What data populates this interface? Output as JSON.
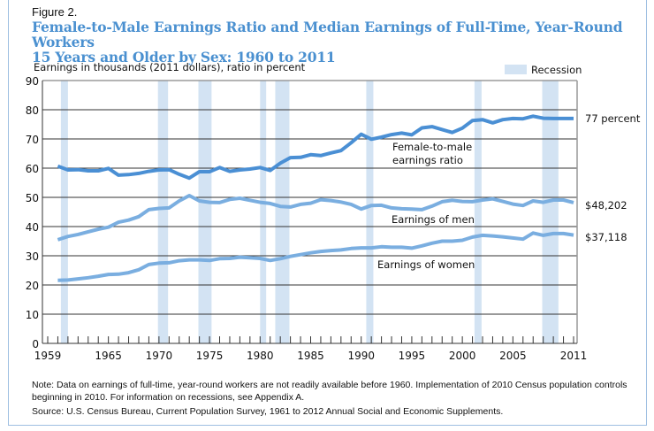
{
  "figure_label": "Figure 2.",
  "title_line1": "Female-to-Male Earnings Ratio and Median Earnings of Full-Time, Year-Round Workers",
  "title_line2": "15 Years and Older by Sex: 1960 to 2011",
  "note": "Note: Data on earnings of full-time, year-round workers are not readily available before 1960. Implementation of 2010 Census population controls beginning in 2010. For information on recessions, see Appendix A.",
  "source": "Source: U.S. Census Bureau, Current Population Survey, 1961 to 2012 Annual Social and Economic Supplements.",
  "colors": {
    "title": "#4a90d0",
    "ratio_line": "#4a8fd4",
    "earnings_line": "#7aaee0",
    "recession": "#d3e3f3",
    "grid": "#333333"
  },
  "chart_data": {
    "type": "line",
    "title": "Female-to-Male Earnings Ratio and Median Earnings of Full-Time, Year-Round Workers 15 Years and Older by Sex: 1960 to 2011",
    "ylabel": "Earnings in thousands (2011 dollars), ratio in percent",
    "xlabel": "",
    "ylim": [
      0,
      90
    ],
    "xlim": [
      1959,
      2011
    ],
    "yticks": [
      0,
      10,
      20,
      30,
      40,
      50,
      60,
      70,
      80,
      90
    ],
    "xtick_labels": [
      "1959",
      "1965",
      "1970",
      "1975",
      "1980",
      "1985",
      "1990",
      "1995",
      "2000",
      "2005",
      "2011"
    ],
    "grid": true,
    "legend": {
      "label": "Recession",
      "placement": "top-right"
    },
    "recessions": [
      [
        1960.3,
        1961.0
      ],
      [
        1969.9,
        1970.9
      ],
      [
        1973.9,
        1975.2
      ],
      [
        1980.0,
        1980.6
      ],
      [
        1981.5,
        1982.9
      ],
      [
        1990.5,
        1991.2
      ],
      [
        2001.2,
        2001.9
      ],
      [
        2007.9,
        2009.5
      ]
    ],
    "x": [
      1960,
      1961,
      1962,
      1963,
      1964,
      1965,
      1966,
      1967,
      1968,
      1969,
      1970,
      1971,
      1972,
      1973,
      1974,
      1975,
      1976,
      1977,
      1978,
      1979,
      1980,
      1981,
      1982,
      1983,
      1984,
      1985,
      1986,
      1987,
      1988,
      1989,
      1990,
      1991,
      1992,
      1993,
      1994,
      1995,
      1996,
      1997,
      1998,
      1999,
      2000,
      2001,
      2002,
      2003,
      2004,
      2005,
      2006,
      2007,
      2008,
      2009,
      2010,
      2011
    ],
    "series": [
      {
        "name": "Female-to-male earnings ratio",
        "end_label": "77 percent",
        "values": [
          60.7,
          59.4,
          59.5,
          59.1,
          59.1,
          59.9,
          57.6,
          57.8,
          58.2,
          58.9,
          59.4,
          59.5,
          57.9,
          56.6,
          58.8,
          58.8,
          60.2,
          58.9,
          59.4,
          59.7,
          60.2,
          59.2,
          61.7,
          63.6,
          63.7,
          64.6,
          64.3,
          65.2,
          66.0,
          68.7,
          71.6,
          69.9,
          70.6,
          71.5,
          72.0,
          71.4,
          73.8,
          74.2,
          73.2,
          72.2,
          73.7,
          76.3,
          76.6,
          75.5,
          76.6,
          77.0,
          76.9,
          77.8,
          77.1,
          77.0,
          77.0,
          77.0
        ]
      },
      {
        "name": "Earnings of men",
        "end_label": "$48,202",
        "values": [
          35.5,
          36.6,
          37.3,
          38.2,
          39.1,
          39.8,
          41.5,
          42.2,
          43.4,
          45.8,
          46.2,
          46.4,
          48.8,
          50.6,
          48.8,
          48.3,
          48.2,
          49.3,
          49.7,
          49.0,
          48.3,
          47.9,
          46.9,
          46.7,
          47.6,
          48.0,
          49.2,
          48.9,
          48.4,
          47.6,
          46.0,
          47.2,
          47.3,
          46.4,
          46.1,
          46.0,
          45.8,
          47.0,
          48.5,
          49.0,
          48.6,
          48.5,
          49.1,
          49.5,
          48.6,
          47.7,
          47.2,
          48.8,
          48.3,
          49.1,
          49.1,
          48.2
        ]
      },
      {
        "name": "Earnings of women",
        "end_label": "$37,118",
        "values": [
          21.6,
          21.7,
          22.1,
          22.5,
          23.0,
          23.6,
          23.7,
          24.2,
          25.2,
          27.0,
          27.5,
          27.6,
          28.3,
          28.6,
          28.6,
          28.4,
          29.0,
          29.1,
          29.5,
          29.3,
          29.1,
          28.4,
          29.0,
          29.8,
          30.4,
          31.0,
          31.5,
          31.8,
          32.0,
          32.5,
          32.7,
          32.7,
          33.1,
          32.9,
          32.9,
          32.6,
          33.4,
          34.3,
          35.0,
          35.0,
          35.3,
          36.4,
          37.0,
          36.8,
          36.5,
          36.1,
          35.7,
          37.8,
          37.0,
          37.6,
          37.6,
          37.1
        ]
      }
    ],
    "annotations": {
      "ratio_label_line1": "Female-to-male",
      "ratio_label_line2": "earnings ratio",
      "men_label": "Earnings of men",
      "women_label": "Earnings of women"
    }
  }
}
